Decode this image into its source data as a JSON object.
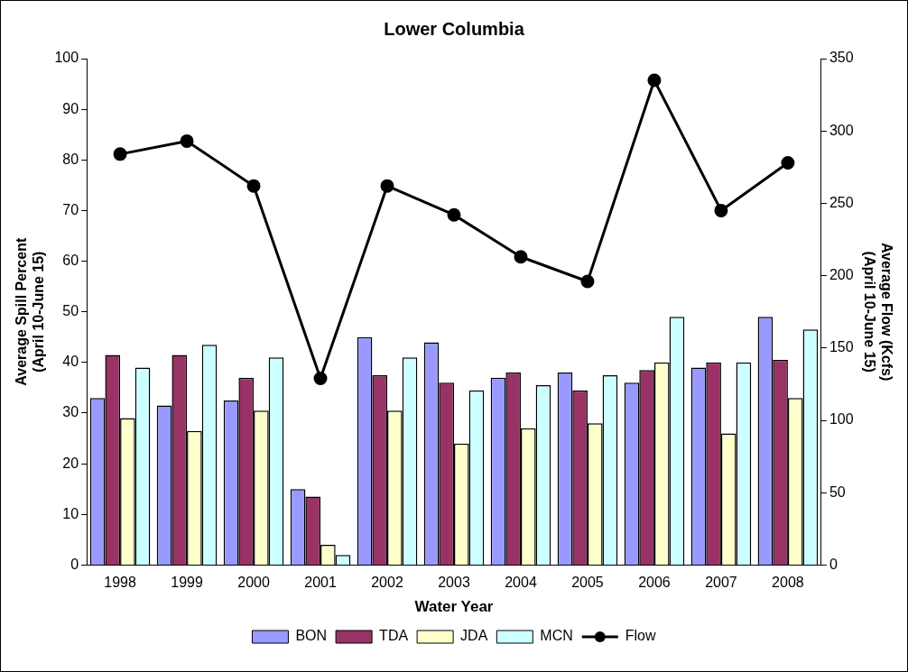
{
  "chart_data": {
    "type": "bar",
    "title": "Lower Columbia",
    "xlabel": "Water Year",
    "ylabel": "Average Spill Percent\n(April 10-June 15)",
    "y2label": "Average Flow (Kcfs)\n(April 10-June 15)",
    "categories": [
      "1998",
      "1999",
      "2000",
      "2001",
      "2002",
      "2003",
      "2004",
      "2005",
      "2006",
      "2007",
      "2008"
    ],
    "series": [
      {
        "name": "BON",
        "color": "#9999ff",
        "values": [
          33,
          31.5,
          32.5,
          15,
          45,
          44,
          37,
          38,
          36,
          39,
          49
        ]
      },
      {
        "name": "TDA",
        "color": "#993366",
        "values": [
          41.5,
          41.5,
          37,
          13.5,
          37.5,
          36,
          38,
          34.5,
          38.5,
          40,
          40.5
        ]
      },
      {
        "name": "JDA",
        "color": "#ffffcc",
        "values": [
          29,
          26.5,
          30.5,
          4,
          30.5,
          24,
          27,
          28,
          40,
          26,
          33
        ]
      },
      {
        "name": "MCN",
        "color": "#ccffff",
        "values": [
          39,
          43.5,
          41,
          2,
          41,
          34.5,
          35.5,
          37.5,
          49,
          40,
          46.5
        ]
      },
      {
        "name": "Flow",
        "type": "line",
        "axis": "y2",
        "color": "#000000",
        "values": [
          284,
          293,
          262,
          129,
          262,
          242,
          213,
          196,
          335,
          245,
          278
        ]
      }
    ],
    "ylim": [
      0,
      100
    ],
    "yticks": [
      0,
      10,
      20,
      30,
      40,
      50,
      60,
      70,
      80,
      90,
      100
    ],
    "y2lim": [
      0,
      350
    ],
    "y2ticks": [
      0,
      50,
      100,
      150,
      200,
      250,
      300,
      350
    ],
    "grid": false,
    "legend": "bottom",
    "marker": "circle",
    "line_style": "solid"
  }
}
